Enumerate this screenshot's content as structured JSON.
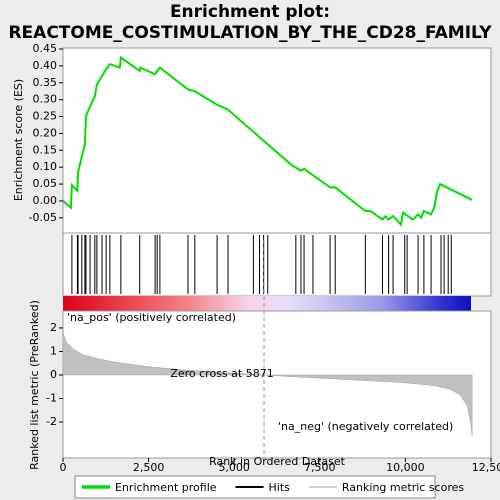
{
  "chart_data": [
    {
      "type": "line",
      "title": "Enrichment plot:",
      "subtitle": "REACTOME_COSTIMULATION_BY_THE_CD28_FAMILY",
      "ylabel": "Enrichment score (ES)",
      "xlim": [
        0,
        12500
      ],
      "ylim": [
        -0.095,
        0.453
      ],
      "yticks": [
        {
          "value": -0.05,
          "label": "-0.05"
        },
        {
          "value": 0,
          "label": "0.00"
        },
        {
          "value": 0.05,
          "label": "0.05"
        },
        {
          "value": 0.1,
          "label": "0.10"
        },
        {
          "value": 0.15,
          "label": "0.15"
        },
        {
          "value": 0.2,
          "label": "0.20"
        },
        {
          "value": 0.25,
          "label": "0.25"
        },
        {
          "value": 0.3,
          "label": "0.30"
        },
        {
          "value": 0.35,
          "label": "0.35"
        },
        {
          "value": 0.4,
          "label": "0.40"
        },
        {
          "value": 0.45,
          "label": "0.45"
        }
      ],
      "series": [
        {
          "name": "Enrichment profile",
          "color": "#00e000",
          "x": [
            0,
            230,
            260,
            420,
            440,
            550,
            640,
            670,
            790,
            930,
            990,
            1140,
            1260,
            1370,
            1660,
            1690,
            2240,
            2260,
            2690,
            2750,
            2830,
            3650,
            3850,
            4500,
            4820,
            6690,
            6950,
            7040,
            7800,
            7950,
            8830,
            8980,
            9330,
            9420,
            9510,
            9640,
            9870,
            9930,
            10220,
            10370,
            10460,
            10540,
            10750,
            10840,
            10920,
            11010,
            11950
          ],
          "values": [
            0,
            -0.02,
            0.047,
            0.03,
            0.086,
            0.13,
            0.17,
            0.25,
            0.28,
            0.31,
            0.345,
            0.37,
            0.39,
            0.405,
            0.395,
            0.425,
            0.385,
            0.395,
            0.375,
            0.385,
            0.395,
            0.33,
            0.325,
            0.285,
            0.27,
            0.105,
            0.09,
            0.095,
            0.04,
            0.04,
            -0.03,
            -0.03,
            -0.055,
            -0.045,
            -0.055,
            -0.045,
            -0.07,
            -0.035,
            -0.055,
            -0.04,
            -0.05,
            -0.03,
            -0.04,
            -0.02,
            0.025,
            0.05,
            0.003
          ]
        }
      ]
    },
    {
      "type": "hits",
      "name": "Hits",
      "color": "#000000",
      "xlim": [
        0,
        12500
      ],
      "x": [
        260,
        420,
        440,
        550,
        640,
        670,
        790,
        930,
        990,
        1140,
        1260,
        1370,
        1690,
        2240,
        2690,
        2750,
        2830,
        3650,
        3850,
        4500,
        4820,
        5560,
        5740,
        5860,
        5980,
        6800,
        6950,
        7040,
        7300,
        7800,
        7950,
        8830,
        9330,
        9510,
        9640,
        9980,
        10050,
        10370,
        10540,
        10750,
        11040,
        11130,
        11250,
        11340
      ]
    },
    {
      "type": "area",
      "ylabel": "Ranked list metric (PreRanked)",
      "xlabel": "Rank in Ordered Dataset",
      "xlim": [
        0,
        12500
      ],
      "ylim": [
        -3.53,
        2.72
      ],
      "xticks": [
        0,
        {
          "value": 2500,
          "label": "2,500"
        },
        {
          "value": 5000,
          "label": "5,000"
        },
        {
          "value": 7500,
          "label": "7,500"
        },
        {
          "value": 10000,
          "label": "10,000"
        },
        {
          "value": 12500,
          "label": "12,500"
        }
      ],
      "yticks": [
        -2,
        -1,
        0,
        1,
        2
      ],
      "series": [
        {
          "name": "Ranking metric scores",
          "color": "#c0c0c0",
          "x": [
            0,
            100,
            300,
            600,
            1000,
            1500,
            2500,
            3500,
            4500,
            5871,
            7000,
            8000,
            9000,
            10000,
            10800,
            11300,
            11600,
            11800,
            11900,
            11950
          ],
          "values": [
            1.8,
            1.4,
            1.1,
            0.85,
            0.7,
            0.55,
            0.35,
            0.22,
            0.12,
            0,
            -0.1,
            -0.17,
            -0.25,
            -0.33,
            -0.45,
            -0.6,
            -0.85,
            -1.3,
            -2.0,
            -2.6
          ]
        }
      ],
      "zero_cross": 5871,
      "zero_label": "Zero cross at 5871",
      "pos_label": "'na_pos' (positively correlated)",
      "neg_label": "'na_neg' (negatively correlated)"
    }
  ]
}
